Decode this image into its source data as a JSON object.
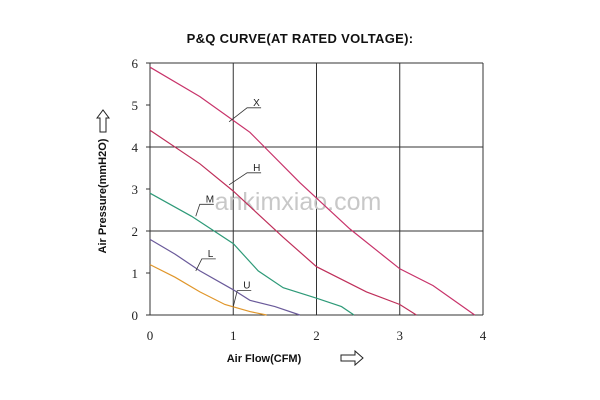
{
  "watermark": "ankimxiao.com",
  "chart_data": {
    "type": "line",
    "title": "P&Q CURVE(AT RATED VOLTAGE):",
    "xlabel": "Air Flow(CFM)",
    "ylabel": "Air Pressure(mmH2O)",
    "xlim": [
      0,
      4
    ],
    "ylim": [
      0,
      6
    ],
    "x_ticks": [
      "0",
      "1",
      "2",
      "3",
      "4"
    ],
    "y_ticks": [
      "0",
      "1",
      "2",
      "3",
      "4",
      "5",
      "6"
    ],
    "grid": true,
    "series": [
      {
        "name": "X",
        "color": "#c8336a",
        "x": [
          0,
          0.6,
          1.2,
          1.8,
          2.4,
          3.0,
          3.4,
          3.9
        ],
        "y": [
          5.9,
          5.2,
          4.35,
          3.15,
          2.05,
          1.1,
          0.7,
          0.0
        ]
      },
      {
        "name": "H",
        "color": "#bf2f5a",
        "x": [
          0,
          0.6,
          1.0,
          1.6,
          2.0,
          2.6,
          3.0,
          3.2
        ],
        "y": [
          4.4,
          3.6,
          2.95,
          1.85,
          1.15,
          0.55,
          0.25,
          0.0
        ]
      },
      {
        "name": "M",
        "color": "#2e9a78",
        "x": [
          0,
          0.5,
          1.0,
          1.3,
          1.6,
          2.0,
          2.3,
          2.45
        ],
        "y": [
          2.9,
          2.35,
          1.7,
          1.05,
          0.65,
          0.4,
          0.2,
          0.0
        ]
      },
      {
        "name": "L",
        "color": "#6a5a9a",
        "x": [
          0,
          0.3,
          0.6,
          1.0,
          1.2,
          1.5,
          1.8
        ],
        "y": [
          1.8,
          1.45,
          1.05,
          0.6,
          0.35,
          0.2,
          0.0
        ]
      },
      {
        "name": "U",
        "color": "#e0962a",
        "x": [
          0,
          0.3,
          0.6,
          0.9,
          1.2,
          1.4
        ],
        "y": [
          1.2,
          0.9,
          0.55,
          0.25,
          0.08,
          0.0
        ]
      }
    ]
  }
}
